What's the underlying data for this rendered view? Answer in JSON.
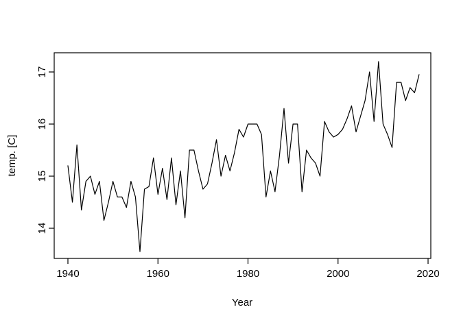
{
  "figure": {
    "background_color": "#ffffff",
    "axis_color": "#000000"
  },
  "chart_data": {
    "type": "line",
    "title": "",
    "xlabel": "Year",
    "ylabel": "temp. [C]",
    "legend": null,
    "grid": false,
    "line_color": "#000000",
    "xlim": [
      1937,
      2021
    ],
    "ylim": [
      13.4,
      17.35
    ],
    "xticks": [
      1940,
      1960,
      1980,
      2000,
      2020
    ],
    "yticks": [
      14,
      15,
      16,
      17
    ],
    "x": [
      1940,
      1941,
      1942,
      1943,
      1944,
      1945,
      1946,
      1947,
      1948,
      1949,
      1950,
      1951,
      1952,
      1953,
      1954,
      1955,
      1956,
      1957,
      1958,
      1959,
      1960,
      1961,
      1962,
      1963,
      1964,
      1965,
      1966,
      1967,
      1968,
      1969,
      1970,
      1971,
      1972,
      1973,
      1974,
      1975,
      1976,
      1977,
      1978,
      1979,
      1980,
      1981,
      1982,
      1983,
      1984,
      1985,
      1986,
      1987,
      1988,
      1989,
      1990,
      1991,
      1992,
      1993,
      1994,
      1995,
      1996,
      1997,
      1998,
      1999,
      2000,
      2001,
      2002,
      2003,
      2004,
      2005,
      2006,
      2007,
      2008,
      2009,
      2010,
      2011,
      2012,
      2013,
      2014,
      2015,
      2016,
      2017,
      2018
    ],
    "values": [
      15.2,
      14.5,
      15.6,
      14.35,
      14.9,
      15.0,
      14.65,
      14.9,
      14.15,
      14.5,
      14.9,
      14.6,
      14.6,
      14.4,
      14.9,
      14.6,
      13.55,
      14.75,
      14.8,
      15.35,
      14.65,
      15.15,
      14.55,
      15.35,
      14.45,
      15.1,
      14.2,
      15.5,
      15.5,
      15.1,
      14.75,
      14.85,
      15.25,
      15.7,
      15.0,
      15.4,
      15.1,
      15.45,
      15.9,
      15.75,
      16.0,
      16.0,
      16.0,
      15.8,
      14.6,
      15.1,
      14.7,
      15.4,
      16.3,
      15.25,
      16.0,
      16.0,
      14.7,
      15.5,
      15.35,
      15.25,
      15.0,
      16.05,
      15.85,
      15.75,
      15.8,
      15.9,
      16.1,
      16.35,
      15.85,
      16.15,
      16.45,
      17.0,
      16.05,
      17.2,
      16.0,
      15.8,
      15.55,
      16.8,
      16.8,
      16.45,
      16.7,
      16.6,
      16.95
    ]
  }
}
